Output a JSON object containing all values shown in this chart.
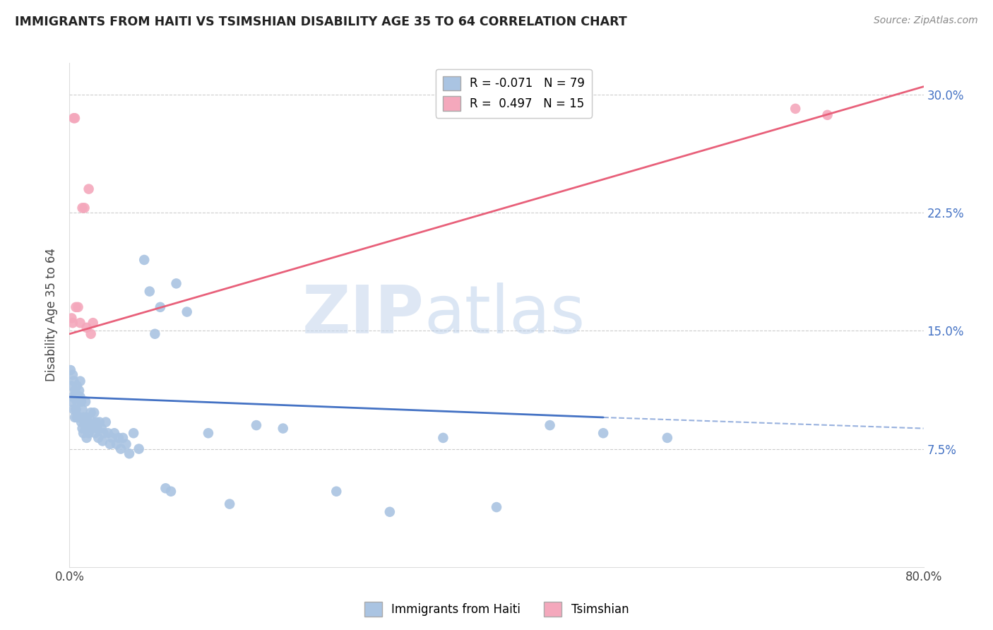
{
  "title": "IMMIGRANTS FROM HAITI VS TSIMSHIAN DISABILITY AGE 35 TO 64 CORRELATION CHART",
  "source": "Source: ZipAtlas.com",
  "ylabel": "Disability Age 35 to 64",
  "xmin": 0.0,
  "xmax": 0.8,
  "ymin": 0.0,
  "ymax": 0.32,
  "ytick_positions": [
    0.0,
    0.075,
    0.15,
    0.225,
    0.3
  ],
  "ytick_labels_right": [
    "",
    "7.5%",
    "15.0%",
    "22.5%",
    "30.0%"
  ],
  "xtick_positions": [
    0.0,
    0.1,
    0.2,
    0.3,
    0.4,
    0.5,
    0.6,
    0.7,
    0.8
  ],
  "xtick_labels": [
    "0.0%",
    "",
    "",
    "",
    "",
    "",
    "",
    "",
    "80.0%"
  ],
  "legend_label_haiti": "Immigrants from Haiti",
  "legend_label_tsimshian": "Tsimshian",
  "R_haiti": -0.071,
  "N_haiti": 79,
  "R_tsimshian": 0.497,
  "N_tsimshian": 15,
  "color_haiti": "#aac4e2",
  "color_tsimshian": "#f4a8bc",
  "line_color_haiti": "#4472c4",
  "line_color_tsimshian": "#e8607a",
  "background_color": "#ffffff",
  "watermark_zip": "ZIP",
  "watermark_atlas": "atlas",
  "haiti_x": [
    0.001,
    0.002,
    0.002,
    0.003,
    0.003,
    0.004,
    0.004,
    0.005,
    0.005,
    0.006,
    0.006,
    0.007,
    0.007,
    0.007,
    0.008,
    0.008,
    0.009,
    0.009,
    0.01,
    0.01,
    0.01,
    0.011,
    0.011,
    0.012,
    0.012,
    0.013,
    0.013,
    0.014,
    0.015,
    0.015,
    0.016,
    0.016,
    0.017,
    0.018,
    0.019,
    0.02,
    0.021,
    0.022,
    0.023,
    0.024,
    0.025,
    0.026,
    0.027,
    0.028,
    0.03,
    0.031,
    0.032,
    0.034,
    0.036,
    0.038,
    0.04,
    0.042,
    0.044,
    0.046,
    0.048,
    0.05,
    0.053,
    0.056,
    0.06,
    0.065,
    0.07,
    0.075,
    0.08,
    0.085,
    0.09,
    0.095,
    0.1,
    0.11,
    0.13,
    0.15,
    0.175,
    0.2,
    0.25,
    0.3,
    0.35,
    0.4,
    0.45,
    0.5,
    0.56
  ],
  "haiti_y": [
    0.125,
    0.115,
    0.105,
    0.122,
    0.108,
    0.118,
    0.1,
    0.112,
    0.095,
    0.11,
    0.1,
    0.115,
    0.105,
    0.095,
    0.108,
    0.095,
    0.112,
    0.095,
    0.118,
    0.108,
    0.095,
    0.105,
    0.092,
    0.1,
    0.088,
    0.095,
    0.085,
    0.092,
    0.105,
    0.088,
    0.095,
    0.082,
    0.092,
    0.085,
    0.088,
    0.098,
    0.088,
    0.092,
    0.098,
    0.085,
    0.092,
    0.088,
    0.082,
    0.092,
    0.088,
    0.08,
    0.085,
    0.092,
    0.085,
    0.078,
    0.082,
    0.085,
    0.078,
    0.082,
    0.075,
    0.082,
    0.078,
    0.072,
    0.085,
    0.075,
    0.195,
    0.175,
    0.148,
    0.165,
    0.05,
    0.048,
    0.18,
    0.162,
    0.085,
    0.04,
    0.09,
    0.088,
    0.048,
    0.035,
    0.082,
    0.038,
    0.09,
    0.085,
    0.082
  ],
  "tsimshian_x": [
    0.002,
    0.003,
    0.004,
    0.005,
    0.006,
    0.008,
    0.01,
    0.012,
    0.014,
    0.016,
    0.018,
    0.02,
    0.022,
    0.68,
    0.71
  ],
  "tsimshian_y": [
    0.158,
    0.155,
    0.285,
    0.285,
    0.165,
    0.165,
    0.155,
    0.228,
    0.228,
    0.152,
    0.24,
    0.148,
    0.155,
    0.291,
    0.287
  ],
  "haiti_line_x0": 0.0,
  "haiti_line_x1": 0.5,
  "haiti_line_x2": 0.8,
  "haiti_line_y_start": 0.108,
  "haiti_line_y_mid": 0.095,
  "haiti_line_y_end": 0.088,
  "tsimshian_line_x0": 0.0,
  "tsimshian_line_x1": 0.8,
  "tsimshian_line_y0": 0.148,
  "tsimshian_line_y1": 0.305
}
